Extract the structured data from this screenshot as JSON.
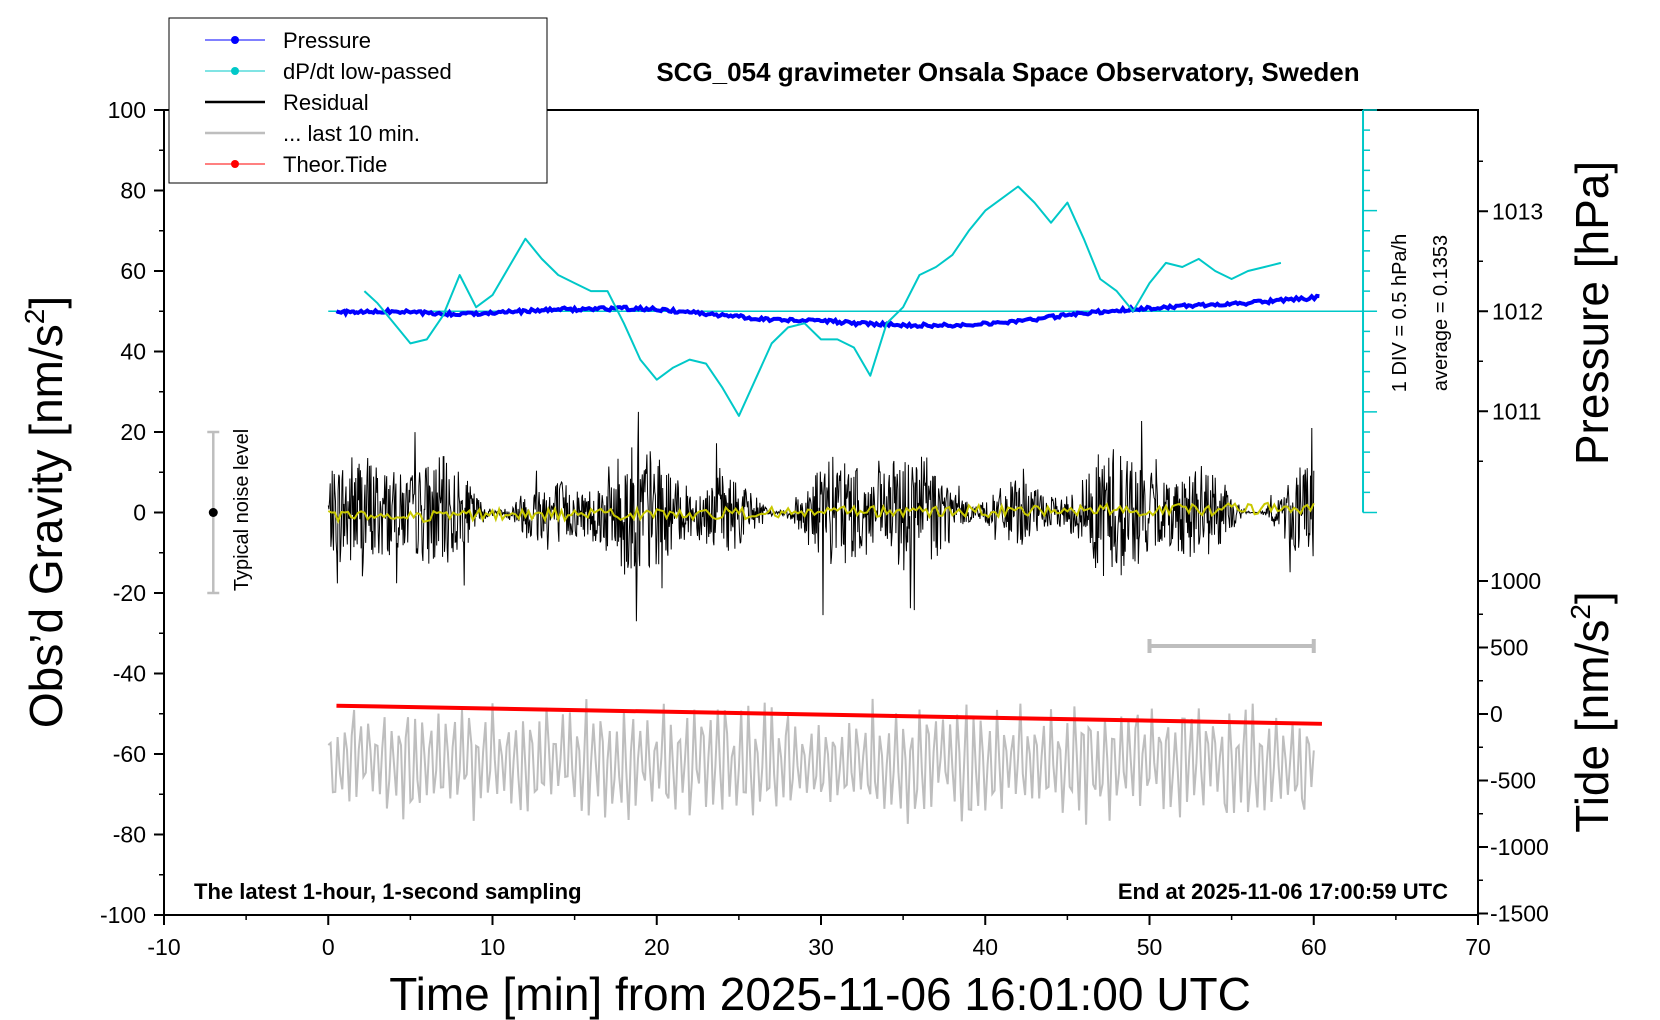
{
  "chart_data": {
    "type": "line",
    "title": "SCG_054 gravimeter Onsala Space Observatory, Sweden",
    "xlabel": "Time [min] from 2025-11-06 16:01:00 UTC",
    "ylabel_left": "Obs’d Gravity [nm/s",
    "ylabel_left_sup": "2",
    "ylabel_left_end": "]",
    "ylabel_right_pressure": "Pressure [hPa]",
    "ylabel_right_tide": "Tide [nm/s",
    "ylabel_right_tide_sup": "2",
    "ylabel_right_tide_end": "]",
    "xlim": [
      -10,
      70
    ],
    "ylim": [
      -100,
      100
    ],
    "x_ticks": [
      "-10",
      "0",
      "10",
      "20",
      "30",
      "40",
      "50",
      "60",
      "70"
    ],
    "y_ticks": [
      "100",
      "80",
      "60",
      "40",
      "20",
      "0",
      "-20",
      "-40",
      "-60",
      "-80",
      "-100"
    ],
    "pressure_ticks": [
      "1013",
      "1012",
      "1011"
    ],
    "tide_ticks": [
      "1000",
      "500",
      "0",
      "-500",
      "-1000",
      "-1500"
    ],
    "bottom_left_note": "The latest 1-hour, 1-second sampling",
    "bottom_right_note": "End at 2025-11-06 17:00:59 UTC",
    "noise_label": "Typical noise level",
    "noise_bar": {
      "x": -7,
      "y": 0,
      "low": -20,
      "high": 20
    },
    "pressure_scale_label": "1 DIV = 0.5 hPa/h",
    "average_label": "average = 0.1353",
    "pressure_reference_hpa": 1012,
    "last10_range_min": [
      50,
      60
    ],
    "legend": [
      {
        "label": "Pressure",
        "color": "#0000ff",
        "marker": true
      },
      {
        "label": "dP/dt low-passed",
        "color": "#00c8c8",
        "marker": true
      },
      {
        "label": "Residual",
        "color": "#000000",
        "marker": false
      },
      {
        "label": "... last 10 min.",
        "color": "#bebebe",
        "marker": false
      },
      {
        "label": "Theor.Tide",
        "color": "#ff0000",
        "marker": true
      }
    ],
    "series": [
      {
        "name": "Pressure",
        "color": "#0000ff",
        "x": [
          0.5,
          2,
          4,
          6,
          8,
          10,
          12,
          14,
          16,
          18,
          20,
          22,
          24,
          26,
          28,
          30,
          32,
          34,
          36,
          38,
          40,
          42,
          44,
          46,
          48,
          50,
          52,
          54,
          56,
          58,
          60.5
        ],
        "y": [
          1011.99,
          1011.99,
          1012.0,
          1011.98,
          1011.97,
          1011.99,
          1012.0,
          1012.02,
          1012.02,
          1012.03,
          1012.02,
          1011.99,
          1011.96,
          1011.93,
          1011.91,
          1011.91,
          1011.88,
          1011.87,
          1011.86,
          1011.86,
          1011.88,
          1011.9,
          1011.94,
          1011.98,
          1012.01,
          1012.03,
          1012.05,
          1012.07,
          1012.08,
          1012.11,
          1012.14
        ]
      },
      {
        "name": "dP/dt low-passed",
        "color": "#00c8c8",
        "x": [
          2.2,
          3,
          4,
          5,
          6,
          7,
          8,
          9,
          10,
          11,
          12,
          13,
          14,
          15,
          16,
          17,
          18,
          19,
          20,
          21,
          22,
          23,
          24,
          25,
          26,
          27,
          28,
          29,
          30,
          31,
          32,
          33,
          34,
          35,
          36,
          37,
          38,
          39,
          40,
          41,
          42,
          43,
          44,
          45,
          46,
          47,
          48,
          49,
          50,
          51,
          52,
          53,
          54,
          55,
          56,
          57,
          58
        ],
        "y": [
          55,
          52,
          47,
          42,
          43,
          49,
          59,
          51,
          54,
          61,
          68,
          63,
          59,
          57,
          55,
          55,
          47,
          38,
          33,
          36,
          38,
          37,
          31,
          24,
          33,
          42,
          46,
          47,
          43,
          43,
          41,
          34,
          47,
          51,
          59,
          61,
          64,
          70,
          75,
          78,
          81,
          77,
          72,
          77,
          68,
          58,
          55,
          50,
          57,
          62,
          61,
          63,
          60,
          58,
          60,
          61,
          62
        ]
      },
      {
        "name": "Residual",
        "color": "#000000",
        "x": [
          0,
          60
        ],
        "y_range": [
          -27,
          25
        ],
        "y_center": 0
      },
      {
        "name": "Residual (smoothed)",
        "color": "#c8c800",
        "x": [
          0,
          10,
          20,
          30,
          40,
          50,
          60
        ],
        "y": [
          -1,
          -1,
          0,
          0,
          0,
          1,
          1
        ]
      },
      {
        "name": "... last 10 min.",
        "color": "#bebebe",
        "x": [
          0,
          60
        ],
        "y_range": [
          -82,
          -40
        ],
        "y_center": -62
      },
      {
        "name": "Theor.Tide",
        "color": "#ff0000",
        "x": [
          0.5,
          60.5
        ],
        "y": [
          -48,
          -52.5
        ]
      }
    ]
  }
}
